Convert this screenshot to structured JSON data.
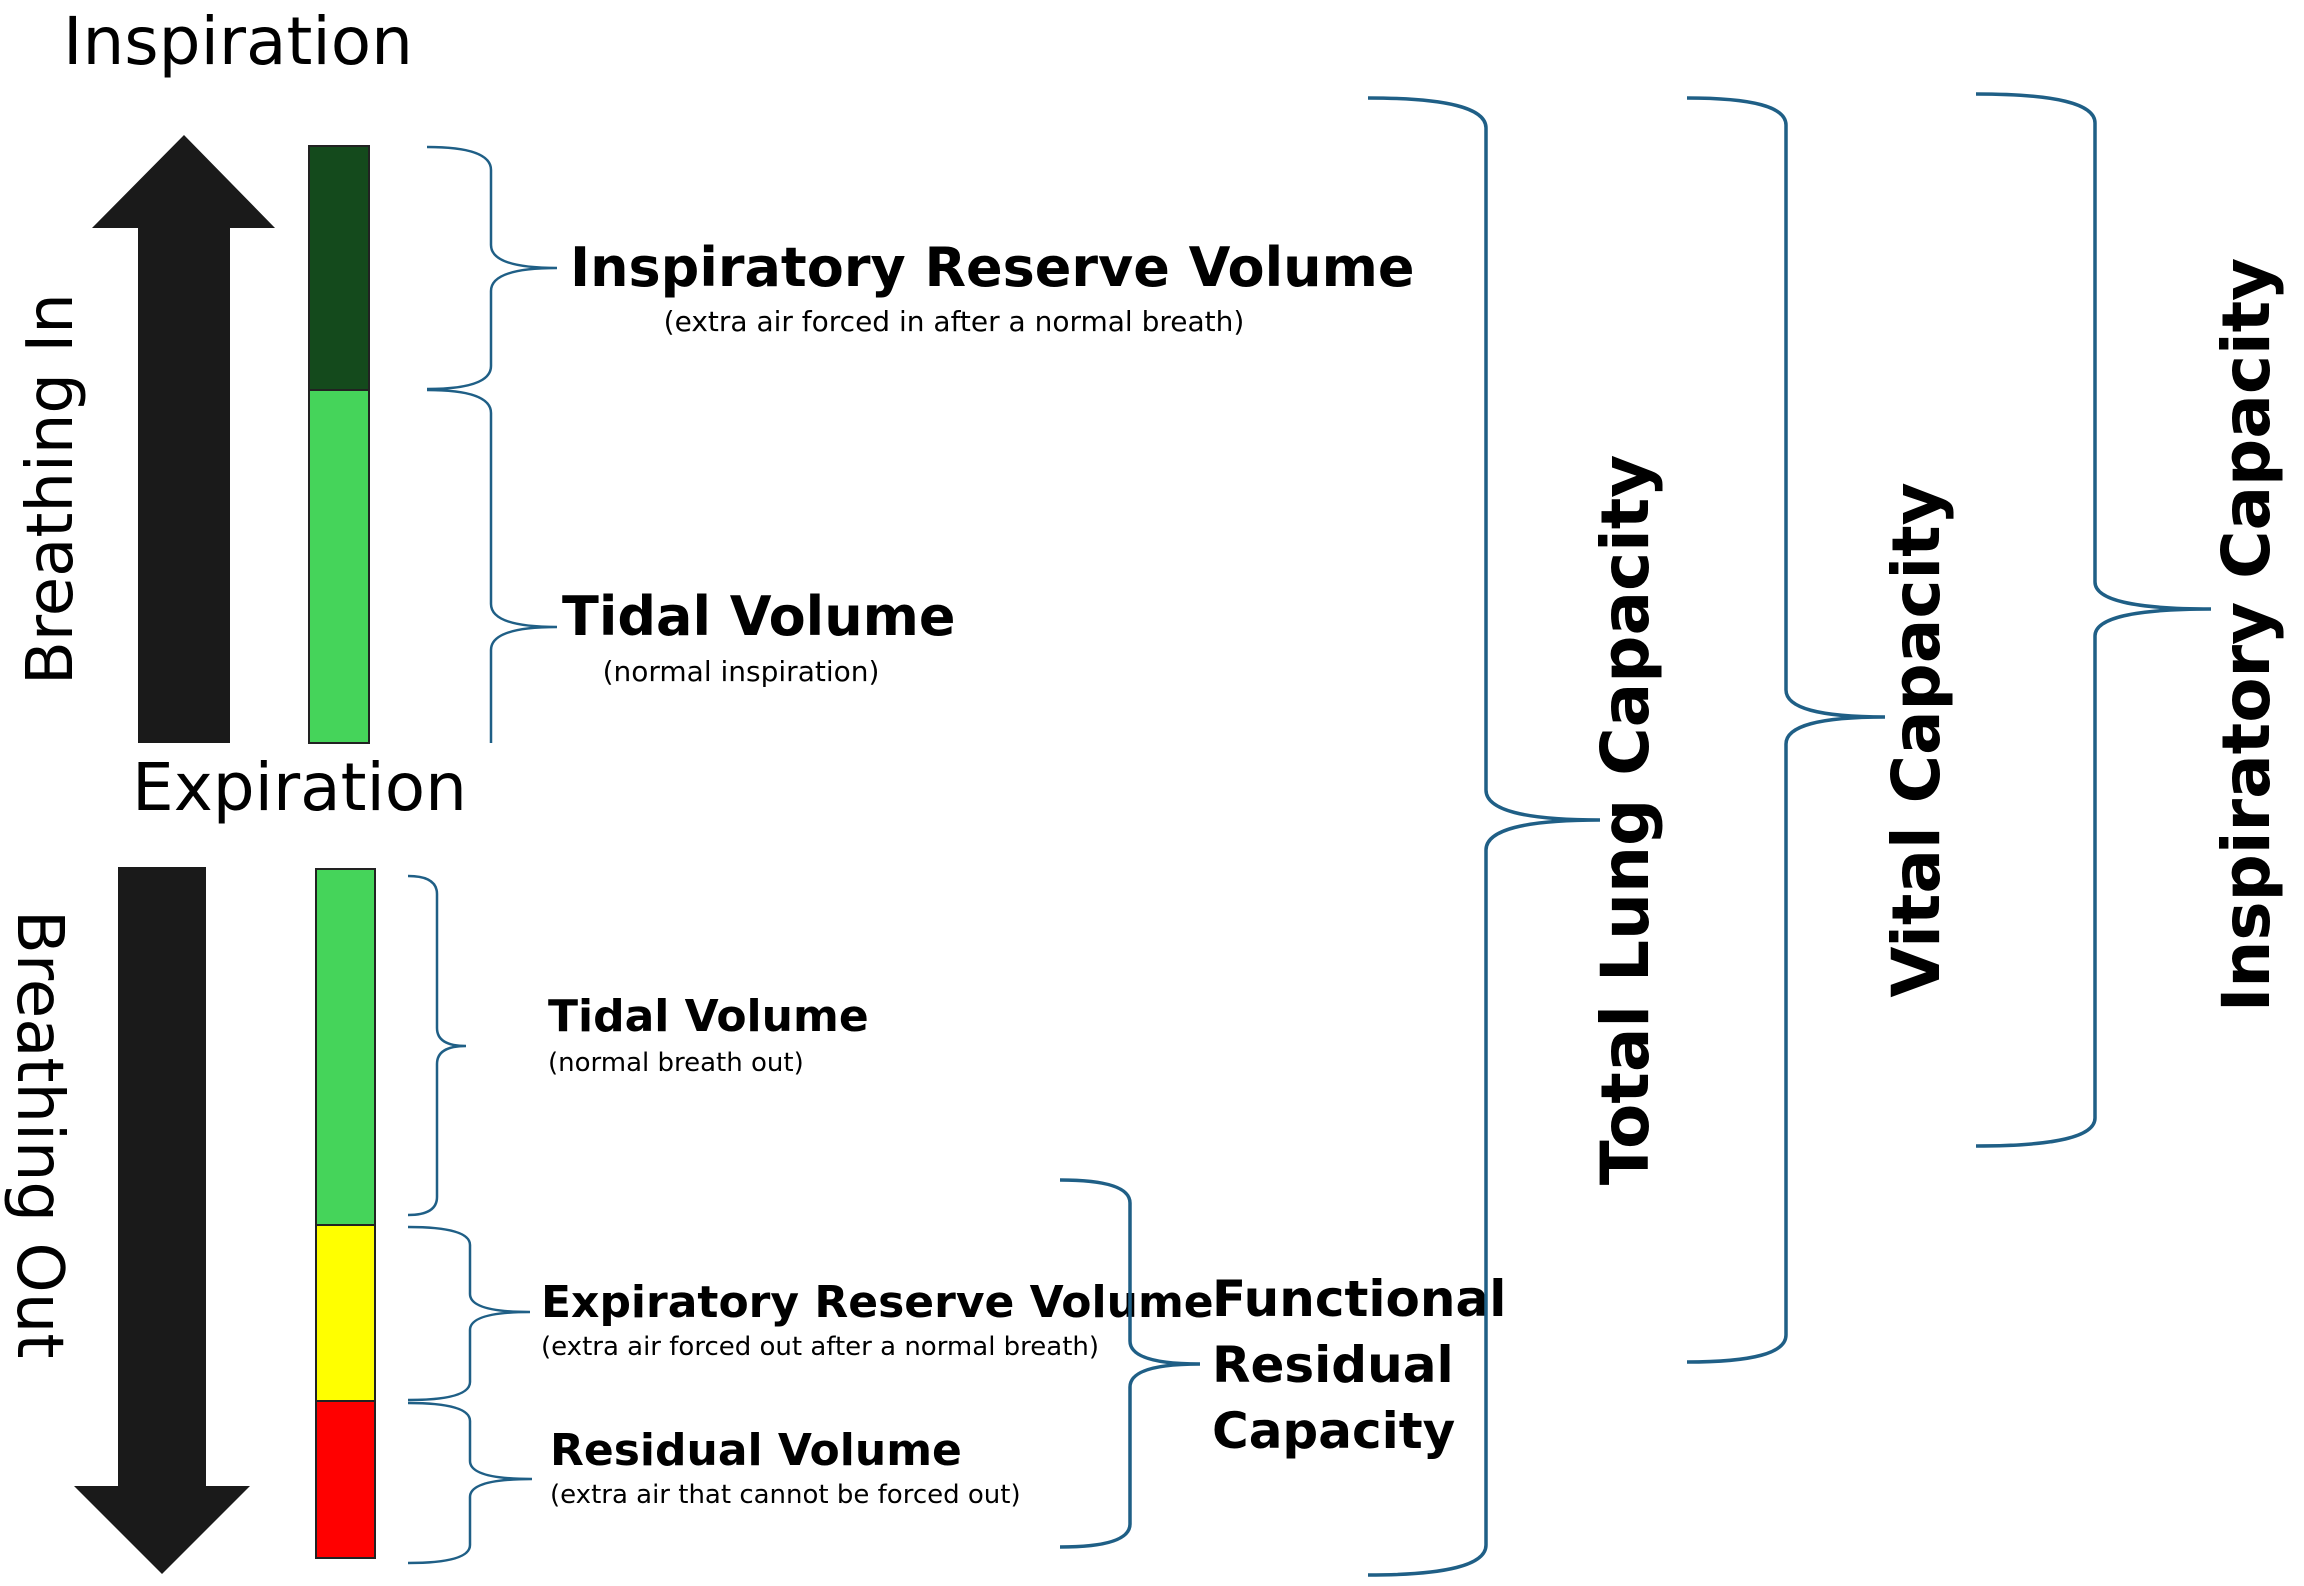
{
  "headings": {
    "inspiration": "Inspiration",
    "expiration": "Expiration"
  },
  "side_labels": {
    "breathing_in": "Breathing In",
    "breathing_out": "Breathing Out"
  },
  "inspiration_volumes": {
    "irv": {
      "title": "Inspiratory Reserve Volume",
      "subtitle": "(extra air forced in after a normal breath)"
    },
    "tidal": {
      "title": "Tidal Volume",
      "subtitle": "(normal inspiration)"
    }
  },
  "expiration_volumes": {
    "tidal": {
      "title": "Tidal Volume",
      "subtitle": "(normal breath out)"
    },
    "erv": {
      "title": "Expiratory Reserve Volume",
      "subtitle": "(extra air forced out after a normal breath)"
    },
    "rv": {
      "title": "Residual Volume",
      "subtitle": "(extra air that cannot be forced out)"
    }
  },
  "functional_residual_capacity": {
    "line1": "Functional",
    "line2": "Residual",
    "line3": "Capacity"
  },
  "capacities": {
    "total_lung": "Total Lung Capacity",
    "vital": "Vital Capacity",
    "inspiratory": "Inspiratory Capacity"
  },
  "colors": {
    "irv": "#144a1c",
    "tidal": "#45d45a",
    "erv": "#ffff00",
    "rv": "#ff0000",
    "arrow": "#1a1a1a",
    "brace": "#1f5f86"
  }
}
